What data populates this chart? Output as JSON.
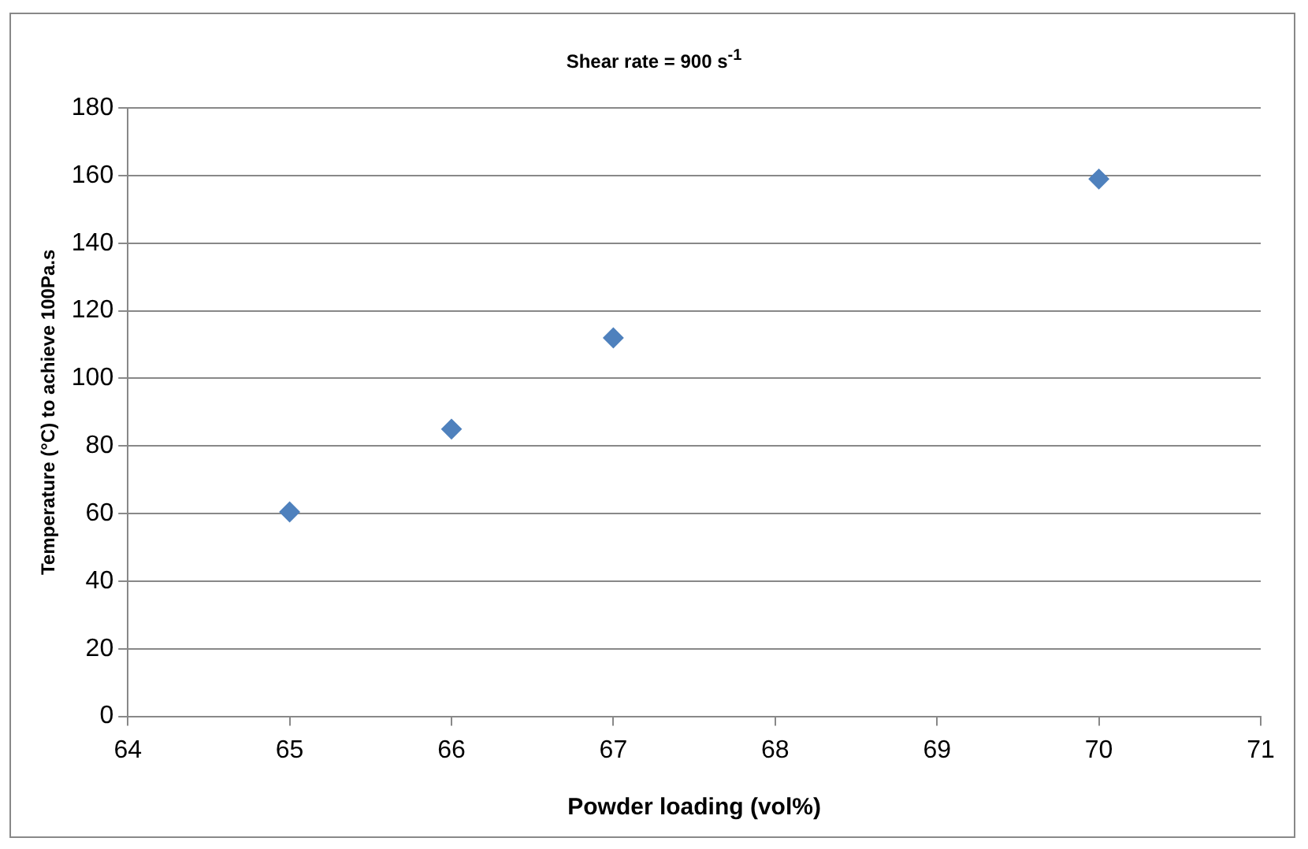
{
  "chart_data": {
    "type": "scatter",
    "title": "Shear rate = 900 s$^{-1}$",
    "xlabel": "Powder loading (vol%)",
    "ylabel": "Temperature (°C) to achieve 100Pa.s",
    "x": [
      65,
      66,
      67,
      70
    ],
    "series": [
      {
        "color": "#4f81bd",
        "values": [
          60.5,
          85,
          112,
          159
        ]
      }
    ],
    "xlim": [
      64,
      71
    ],
    "xticks": [
      64,
      65,
      66,
      67,
      68,
      69,
      70,
      71
    ],
    "ylim": [
      0,
      180
    ],
    "yticks": [
      0,
      20,
      40,
      60,
      80,
      100,
      120,
      140,
      160,
      180
    ],
    "grid": "y",
    "marker": "diamond",
    "legend": false
  }
}
